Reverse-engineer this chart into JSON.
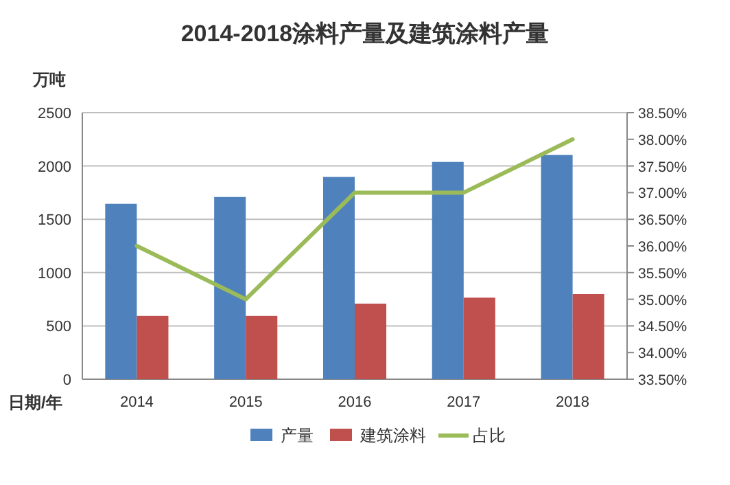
{
  "chart_data": {
    "type": "bar",
    "title": "2014-2018涂料产量及建筑涂料产量",
    "xlabel": "日期/年",
    "ylabel": "万吨",
    "categories": [
      "2014",
      "2015",
      "2016",
      "2017",
      "2018"
    ],
    "series": [
      {
        "name": "产量",
        "color": "#4f81bd",
        "values": [
          1645,
          1709,
          1897,
          2038,
          2103
        ]
      },
      {
        "name": "建筑涂料",
        "color": "#c0504d",
        "values": [
          594,
          594,
          709,
          765,
          799
        ]
      },
      {
        "name": "占比",
        "type": "line",
        "axis": "y2",
        "color": "#9bbb59",
        "values": [
          36.0,
          35.0,
          37.0,
          37.0,
          38.0
        ]
      }
    ],
    "ylim": [
      0,
      2500
    ],
    "yticks": [
      0,
      500,
      1000,
      1500,
      2000,
      2500
    ],
    "y2lim": [
      33.5,
      38.5
    ],
    "y2ticks": [
      {
        "value": 33.5,
        "label": "33.50%"
      },
      {
        "value": 34.0,
        "label": "34.00%"
      },
      {
        "value": 34.5,
        "label": "34.50%"
      },
      {
        "value": 35.0,
        "label": "35.00%"
      },
      {
        "value": 35.5,
        "label": "35.50%"
      },
      {
        "value": 36.0,
        "label": "36.00%"
      },
      {
        "value": 36.5,
        "label": "36.50%"
      },
      {
        "value": 37.0,
        "label": "37.00%"
      },
      {
        "value": 37.5,
        "label": "37.50%"
      },
      {
        "value": 38.0,
        "label": "38.00%"
      },
      {
        "value": 38.5,
        "label": "38.50%"
      }
    ],
    "grid": "y",
    "legend": "bottom"
  }
}
